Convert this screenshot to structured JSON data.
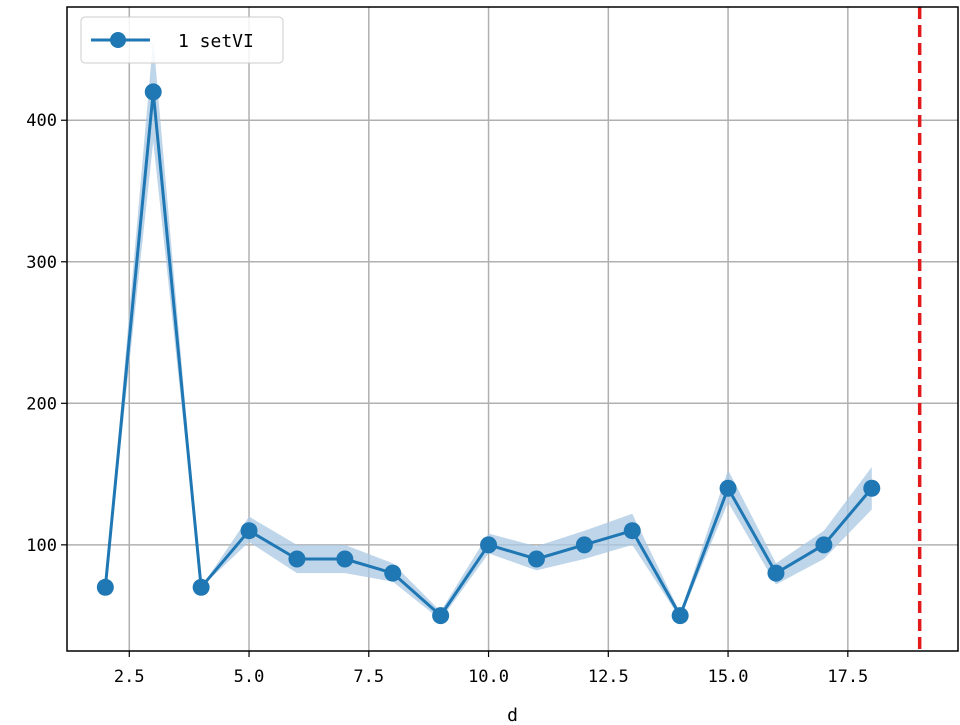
{
  "chart_data": {
    "type": "line",
    "xlabel": "d",
    "ylabel": "",
    "xlim": [
      1.2,
      19.8
    ],
    "ylim": [
      25,
      480
    ],
    "xticks": [
      2.5,
      5.0,
      7.5,
      10.0,
      12.5,
      15.0,
      17.5
    ],
    "xtick_labels": [
      "2.5",
      "5.0",
      "7.5",
      "10.0",
      "12.5",
      "15.0",
      "17.5"
    ],
    "yticks": [
      100,
      200,
      300,
      400
    ],
    "ytick_labels": [
      "100",
      "200",
      "300",
      "400"
    ],
    "grid": true,
    "legend_position": "top-left",
    "series": [
      {
        "name": "1 setVI",
        "color": "#1f77b4",
        "band_color": "#aac8e3",
        "x": [
          2,
          3,
          4,
          5,
          6,
          7,
          8,
          9,
          10,
          11,
          12,
          13,
          14,
          15,
          16,
          17,
          18
        ],
        "values": [
          70,
          420,
          70,
          110,
          90,
          90,
          80,
          50,
          100,
          90,
          100,
          110,
          50,
          140,
          80,
          100,
          140
        ],
        "lower": [
          70,
          385,
          70,
          102,
          80,
          80,
          74,
          47,
          94,
          82,
          90,
          100,
          48,
          130,
          72,
          90,
          125
        ],
        "upper": [
          70,
          458,
          70,
          120,
          100,
          100,
          87,
          53,
          108,
          99,
          110,
          122,
          52,
          153,
          87,
          110,
          155
        ]
      }
    ],
    "annotations": [
      {
        "type": "vline",
        "x": 19,
        "color": "#e31a1c",
        "style": "dashed"
      }
    ]
  }
}
